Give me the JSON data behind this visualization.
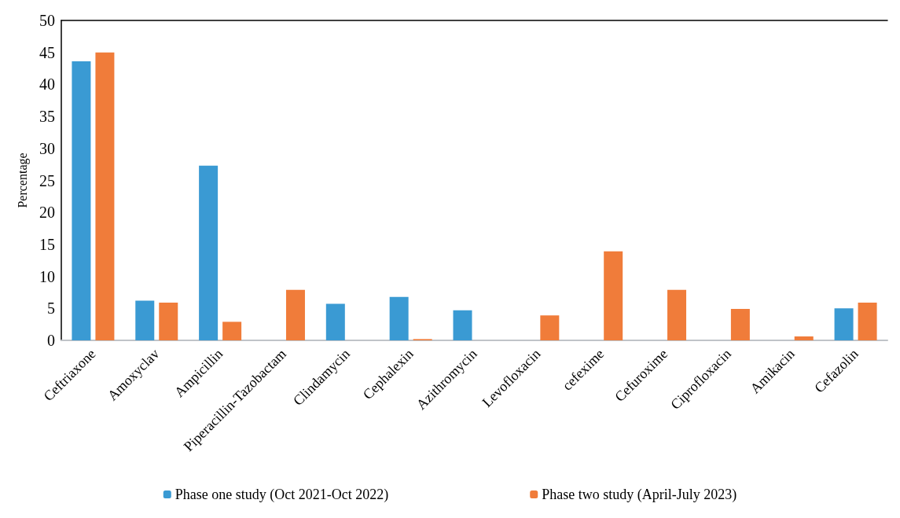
{
  "chart_data": {
    "type": "bar",
    "ylabel": "Percentage",
    "categories": [
      "Ceftriaxone",
      "Amoxyclav",
      "Ampicillin",
      "Piperacillin-Tazobactam",
      "Clindamycin",
      "Cephalexin",
      "Azithromycin",
      "Levofloxacin",
      "cefexime",
      "Cefuroxime",
      "Ciprofloxacin",
      "Amikacin",
      "Cefazolin"
    ],
    "series": [
      {
        "name": "Phase one study (Oct 2021-Oct 2022)",
        "color": "#3a9ad3",
        "values": [
          43.6,
          6.2,
          27.3,
          0,
          5.7,
          6.8,
          4.7,
          0,
          0,
          0,
          0,
          0,
          5.0
        ]
      },
      {
        "name": "Phase two study (April-July 2023)",
        "color": "#f07c3a",
        "values": [
          45,
          5.9,
          2.9,
          7.9,
          0,
          0.2,
          0,
          3.9,
          13.9,
          7.9,
          4.9,
          0.6,
          5.9
        ]
      }
    ],
    "ylim": [
      0,
      50
    ],
    "yticks": [
      0,
      5,
      10,
      15,
      20,
      25,
      30,
      35,
      40,
      45,
      50
    ],
    "grid": false,
    "legend": "bottom"
  }
}
